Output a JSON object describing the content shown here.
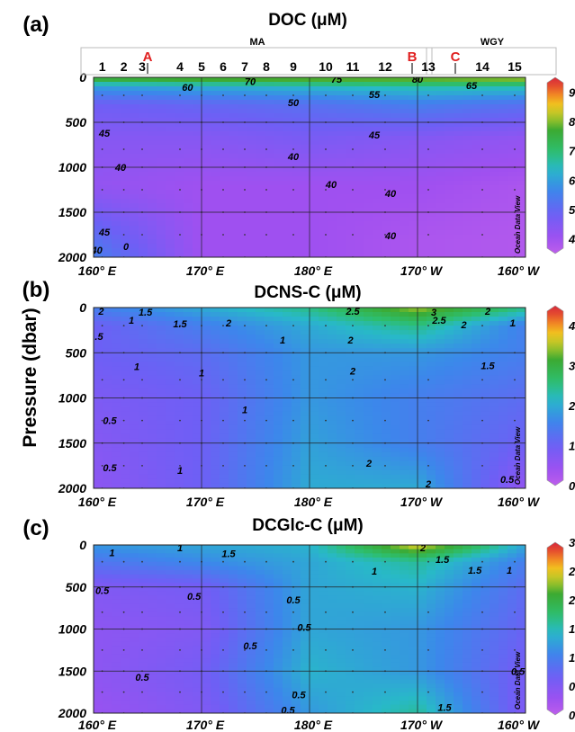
{
  "figure": {
    "shared_ylabel": "Pressure (dbar)",
    "watermark": "Ocean Data View"
  },
  "chart_data": [
    {
      "type": "heatmap",
      "panel_label": "(a)",
      "title": "DOC  (μM)",
      "x_tick_labels": [
        "160° E",
        "170° E",
        "180° E",
        "170° W",
        "160° W"
      ],
      "x_ticks_deg_east": [
        160,
        170,
        180,
        190,
        200
      ],
      "xlim_deg_east": [
        160,
        200
      ],
      "y_tick_labels": [
        "0",
        "500",
        "1000",
        "1500",
        "2000"
      ],
      "ylim": [
        0,
        2000
      ],
      "y_inverted": true,
      "grid": true,
      "colorbar": {
        "ticks": [
          40,
          50,
          60,
          70,
          80,
          90
        ],
        "range": [
          35,
          95
        ]
      },
      "regions": [
        {
          "label": "MA",
          "x_range_deg_east": [
            159.5,
            191.5
          ]
        },
        {
          "label": "WGY",
          "x_range_deg_east": [
            191.5,
            203
          ]
        }
      ],
      "stations": [
        {
          "label": "1",
          "lon": 160.8
        },
        {
          "label": "2",
          "lon": 162.8
        },
        {
          "label": "3",
          "lon": 164.5
        },
        {
          "label": "4",
          "lon": 168.0
        },
        {
          "label": "5",
          "lon": 170.0
        },
        {
          "label": "6",
          "lon": 172.0
        },
        {
          "label": "7",
          "lon": 174.0
        },
        {
          "label": "8",
          "lon": 176.0
        },
        {
          "label": "9",
          "lon": 178.5
        },
        {
          "label": "10",
          "lon": 181.5
        },
        {
          "label": "11",
          "lon": 184.0
        },
        {
          "label": "12",
          "lon": 187.0
        },
        {
          "label": "13",
          "lon": 191.0
        },
        {
          "label": "14",
          "lon": 196.0
        },
        {
          "label": "15",
          "lon": 199.0
        }
      ],
      "section_markers": [
        {
          "label": "A",
          "lon": 165.0
        },
        {
          "label": "B",
          "lon": 189.5
        },
        {
          "label": "C",
          "lon": 193.5
        }
      ],
      "contours": [
        {
          "value": "75",
          "lon": 182.5,
          "depth": 20
        },
        {
          "value": "80",
          "lon": 190.0,
          "depth": 20
        },
        {
          "value": "70",
          "lon": 174.5,
          "depth": 45
        },
        {
          "value": "65",
          "lon": 195.0,
          "depth": 90
        },
        {
          "value": "60",
          "lon": 168.7,
          "depth": 110
        },
        {
          "value": "55",
          "lon": 186.0,
          "depth": 190
        },
        {
          "value": "50",
          "lon": 178.5,
          "depth": 280
        },
        {
          "value": "45",
          "lon": 161.0,
          "depth": 620
        },
        {
          "value": "45",
          "lon": 186.0,
          "depth": 640
        },
        {
          "value": "40",
          "lon": 178.5,
          "depth": 880
        },
        {
          "value": "40",
          "lon": 162.5,
          "depth": 1000
        },
        {
          "value": "40",
          "lon": 182.0,
          "depth": 1190
        },
        {
          "value": "40",
          "lon": 187.5,
          "depth": 1290
        },
        {
          "value": "40",
          "lon": 187.5,
          "depth": 1760
        },
        {
          "value": "45",
          "lon": 161.0,
          "depth": 1720
        },
        {
          "value": "40",
          "lon": 160.3,
          "depth": 1920
        },
        {
          "value": "0",
          "lon": 163.0,
          "depth": 1880
        }
      ],
      "field": [
        {
          "depth": 0,
          "values": [
            80,
            82,
            82,
            82,
            84
          ]
        },
        {
          "depth": 100,
          "values": [
            60,
            62,
            64,
            66,
            66
          ]
        },
        {
          "depth": 300,
          "values": [
            48,
            50,
            52,
            55,
            52
          ]
        },
        {
          "depth": 700,
          "values": [
            44,
            44,
            46,
            44,
            42
          ]
        },
        {
          "depth": 1200,
          "values": [
            42,
            40,
            40,
            40,
            38
          ]
        },
        {
          "depth": 1800,
          "values": [
            52,
            40,
            40,
            38,
            37
          ]
        },
        {
          "depth": 2000,
          "values": [
            55,
            40,
            40,
            38,
            37
          ]
        }
      ]
    },
    {
      "type": "heatmap",
      "panel_label": "(b)",
      "title": "DCNS-C (μM)",
      "x_tick_labels": [
        "160° E",
        "170° E",
        "180° E",
        "170° W",
        "160° W"
      ],
      "x_ticks_deg_east": [
        160,
        170,
        180,
        190,
        200
      ],
      "xlim_deg_east": [
        160,
        200
      ],
      "y_tick_labels": [
        "0",
        "500",
        "1000",
        "1500",
        "2000"
      ],
      "ylim": [
        0,
        2000
      ],
      "y_inverted": true,
      "grid": true,
      "colorbar": {
        "ticks": [
          0,
          1,
          2,
          3,
          4
        ],
        "range": [
          0,
          4.5
        ]
      },
      "contours": [
        {
          "value": "2",
          "lon": 160.7,
          "depth": 40
        },
        {
          "value": "1.5",
          "lon": 164.8,
          "depth": 50
        },
        {
          "value": "2.5",
          "lon": 184.0,
          "depth": 40
        },
        {
          "value": "3",
          "lon": 191.5,
          "depth": 50
        },
        {
          "value": "2",
          "lon": 196.5,
          "depth": 40
        },
        {
          "value": "1",
          "lon": 163.5,
          "depth": 140
        },
        {
          "value": "1.5",
          "lon": 168.0,
          "depth": 180
        },
        {
          "value": "2",
          "lon": 172.5,
          "depth": 170
        },
        {
          "value": "2.5",
          "lon": 192.0,
          "depth": 140
        },
        {
          "value": "2",
          "lon": 194.3,
          "depth": 190
        },
        {
          "value": "1",
          "lon": 198.8,
          "depth": 170
        },
        {
          "value": ".5",
          "lon": 160.5,
          "depth": 320
        },
        {
          "value": "1",
          "lon": 177.5,
          "depth": 360
        },
        {
          "value": "2",
          "lon": 183.8,
          "depth": 360
        },
        {
          "value": "1",
          "lon": 164.0,
          "depth": 650
        },
        {
          "value": "1",
          "lon": 170.0,
          "depth": 720
        },
        {
          "value": "2",
          "lon": 184.0,
          "depth": 700
        },
        {
          "value": "1.5",
          "lon": 196.5,
          "depth": 640
        },
        {
          "value": "1",
          "lon": 174.0,
          "depth": 1130
        },
        {
          "value": "0.5",
          "lon": 161.5,
          "depth": 1250
        },
        {
          "value": "0.5",
          "lon": 161.5,
          "depth": 1770
        },
        {
          "value": "1",
          "lon": 168.0,
          "depth": 1800
        },
        {
          "value": "2",
          "lon": 185.5,
          "depth": 1720
        },
        {
          "value": "2",
          "lon": 191.0,
          "depth": 1950
        },
        {
          "value": "0.5",
          "lon": 198.3,
          "depth": 1900
        }
      ],
      "field": [
        {
          "depth": 0,
          "values": [
            1.5,
            2.0,
            2.5,
            3.5,
            2.5
          ]
        },
        {
          "depth": 200,
          "values": [
            1.0,
            1.5,
            2.0,
            2.5,
            1.5
          ]
        },
        {
          "depth": 500,
          "values": [
            1.0,
            1.2,
            1.8,
            1.8,
            1.5
          ]
        },
        {
          "depth": 1000,
          "values": [
            0.8,
            1.0,
            1.8,
            1.5,
            1.2
          ]
        },
        {
          "depth": 1500,
          "values": [
            0.7,
            1.0,
            1.9,
            1.5,
            1.0
          ]
        },
        {
          "depth": 2000,
          "values": [
            0.6,
            1.0,
            2.0,
            2.0,
            0.5
          ]
        }
      ]
    },
    {
      "type": "heatmap",
      "panel_label": "(c)",
      "title": "DCGlc-C (μM)",
      "x_tick_labels": [
        "160° E",
        "170° E",
        "180° E",
        "170° W",
        "160° W"
      ],
      "x_ticks_deg_east": [
        160,
        170,
        180,
        190,
        200
      ],
      "xlim_deg_east": [
        160,
        200
      ],
      "y_tick_labels": [
        "0",
        "500",
        "1000",
        "1500",
        "2000"
      ],
      "ylim": [
        0,
        2000
      ],
      "y_inverted": true,
      "grid": true,
      "colorbar": {
        "ticks": [
          0,
          0.5,
          1,
          1.5,
          2,
          2.5,
          3
        ],
        "range": [
          0,
          3
        ]
      },
      "contours": [
        {
          "value": "1",
          "lon": 161.7,
          "depth": 90
        },
        {
          "value": "1",
          "lon": 168.0,
          "depth": 30
        },
        {
          "value": "1.5",
          "lon": 172.5,
          "depth": 100
        },
        {
          "value": "2",
          "lon": 190.5,
          "depth": 30
        },
        {
          "value": "1.5",
          "lon": 192.3,
          "depth": 170
        },
        {
          "value": "1.5",
          "lon": 195.3,
          "depth": 300
        },
        {
          "value": "1",
          "lon": 186.0,
          "depth": 310
        },
        {
          "value": "1",
          "lon": 198.5,
          "depth": 300
        },
        {
          "value": "0.5",
          "lon": 160.8,
          "depth": 540
        },
        {
          "value": "0.5",
          "lon": 169.3,
          "depth": 610
        },
        {
          "value": "0.5",
          "lon": 178.5,
          "depth": 650
        },
        {
          "value": "0.5",
          "lon": 179.5,
          "depth": 980
        },
        {
          "value": "0.5",
          "lon": 174.5,
          "depth": 1200
        },
        {
          "value": "0.5",
          "lon": 164.5,
          "depth": 1570
        },
        {
          "value": "0.5",
          "lon": 179.0,
          "depth": 1780
        },
        {
          "value": "0.5",
          "lon": 178.0,
          "depth": 1960
        },
        {
          "value": "1.5",
          "lon": 192.5,
          "depth": 1930
        },
        {
          "value": "0.5",
          "lon": 199.3,
          "depth": 1500
        }
      ],
      "field": [
        {
          "depth": 0,
          "values": [
            1.2,
            1.3,
            1.4,
            2.5,
            1.3
          ]
        },
        {
          "depth": 200,
          "values": [
            0.9,
            1.1,
            1.3,
            1.6,
            1.0
          ]
        },
        {
          "depth": 500,
          "values": [
            0.5,
            0.6,
            1.3,
            1.4,
            0.8
          ]
        },
        {
          "depth": 1000,
          "values": [
            0.4,
            0.5,
            1.3,
            1.2,
            0.7
          ]
        },
        {
          "depth": 1500,
          "values": [
            0.4,
            0.6,
            1.4,
            1.2,
            0.6
          ]
        },
        {
          "depth": 2000,
          "values": [
            0.3,
            0.5,
            1.2,
            1.6,
            0.5
          ]
        }
      ]
    }
  ]
}
